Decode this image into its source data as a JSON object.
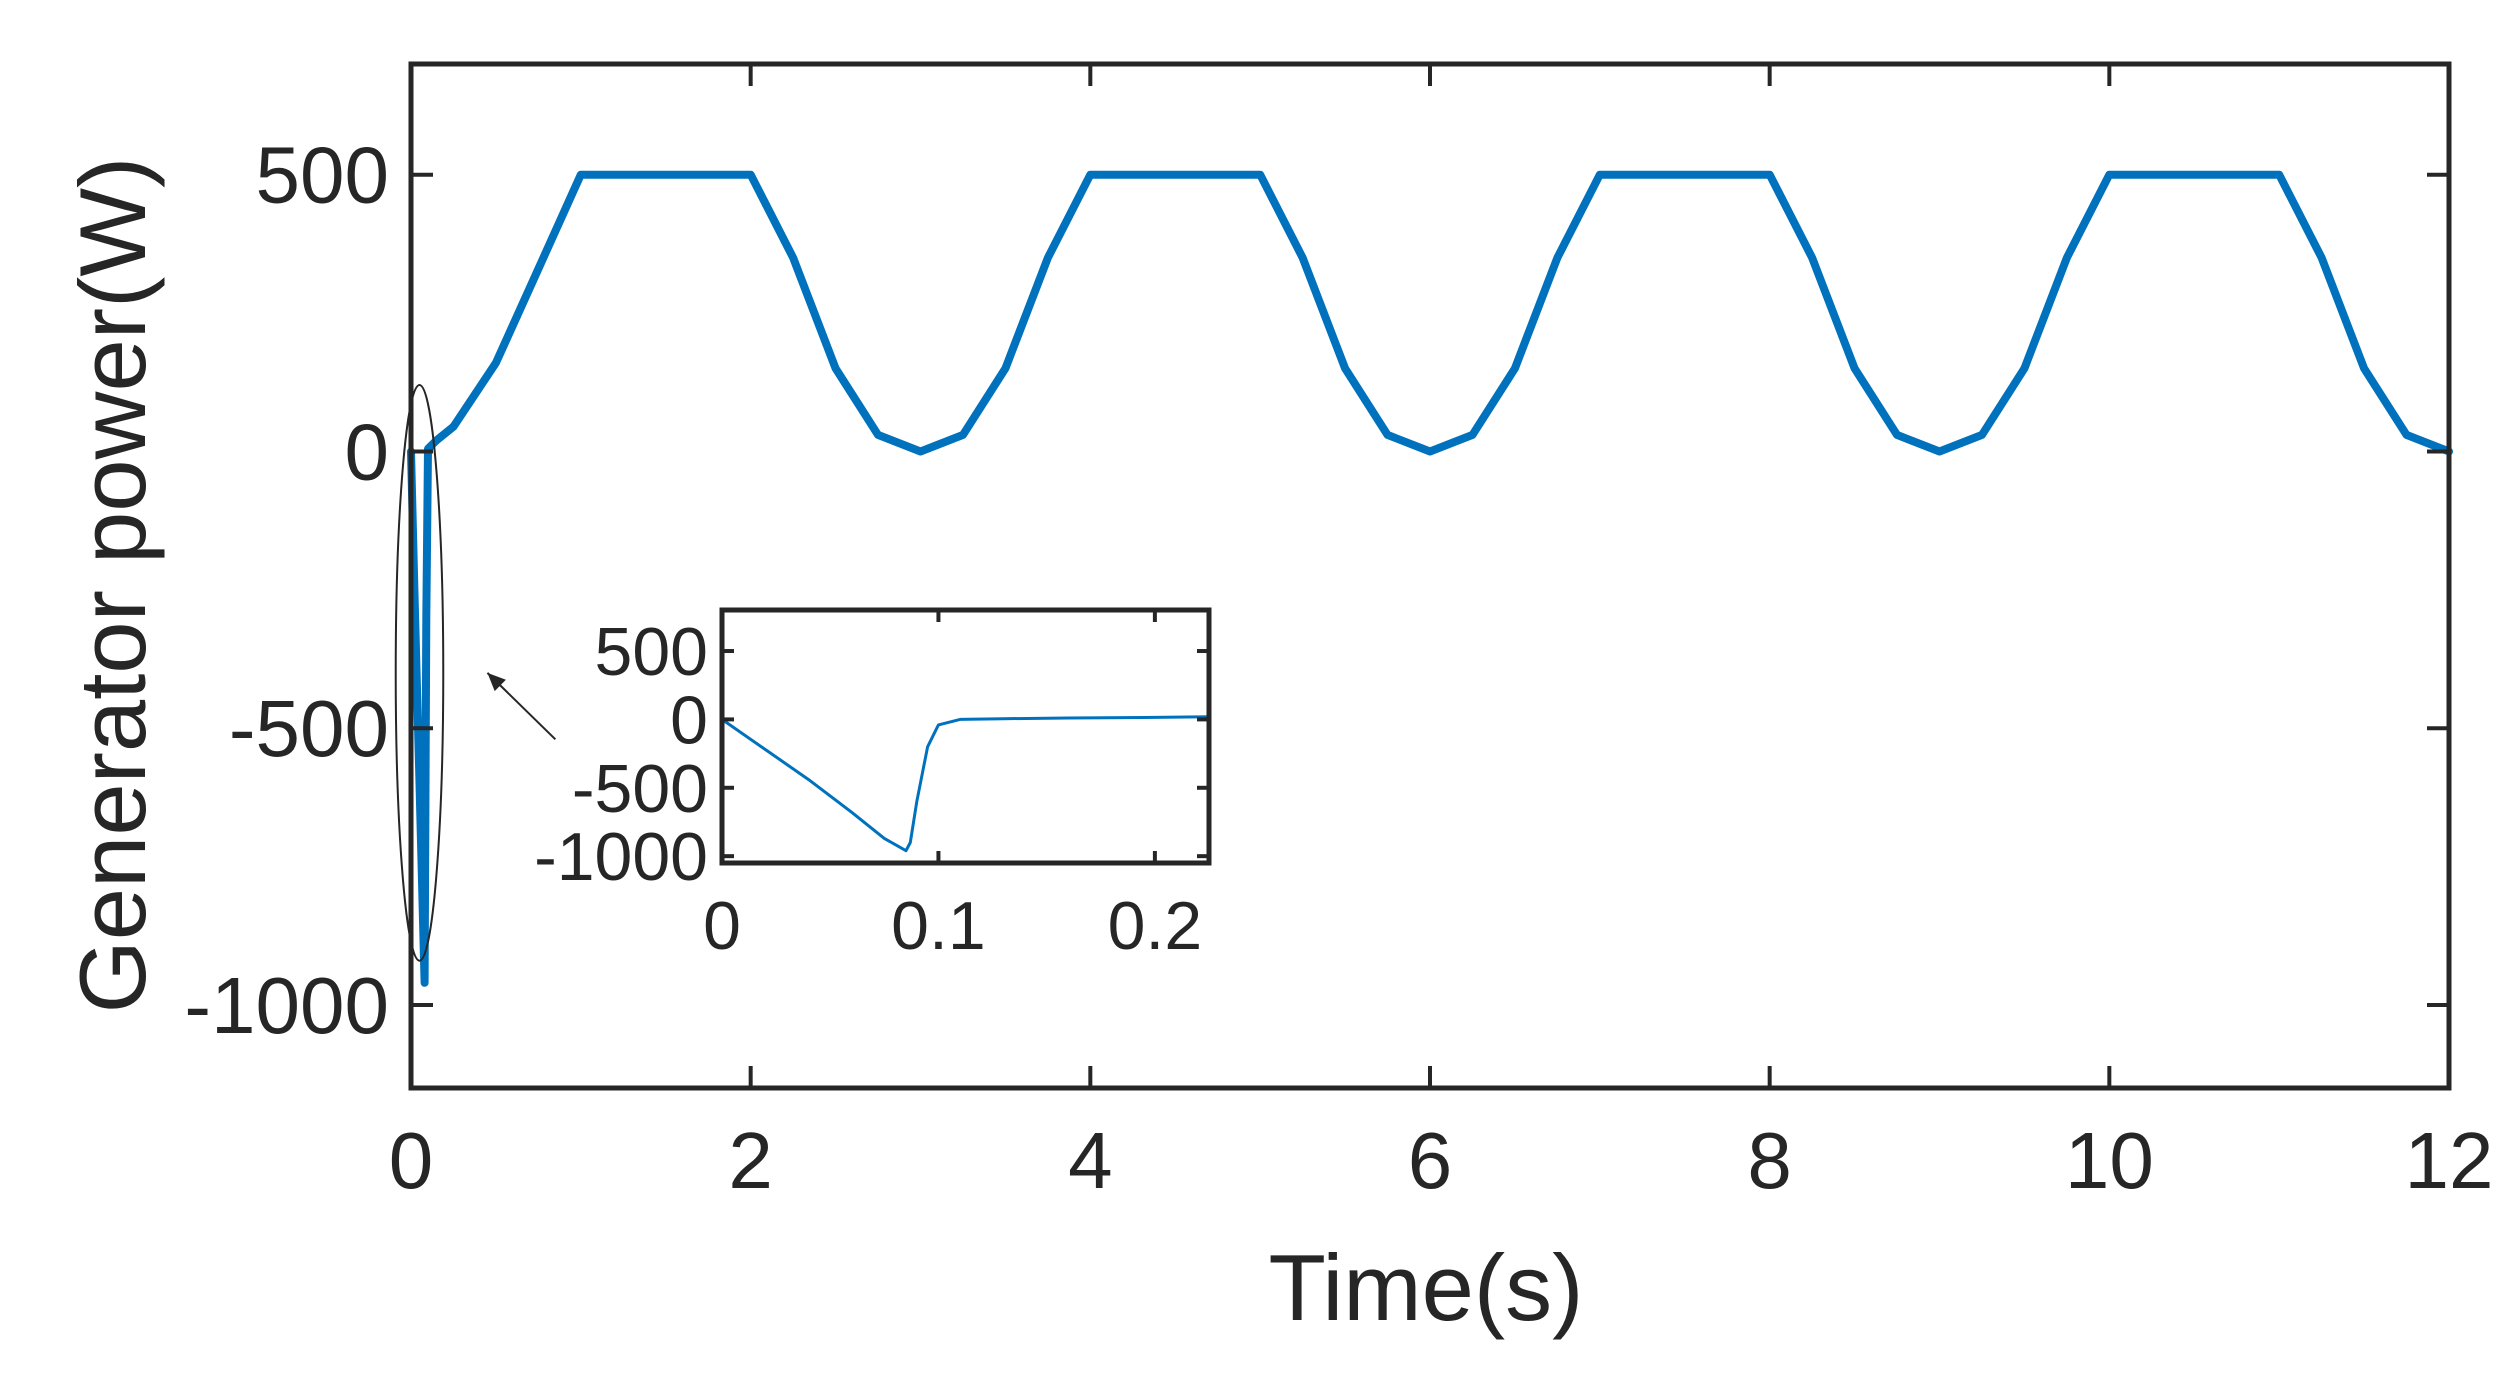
{
  "chart_data": [
    {
      "type": "line",
      "xlabel": "Time(s)",
      "ylabel": "Generator power(W)",
      "xlim": [
        0,
        12
      ],
      "ylim": [
        -1150,
        700
      ],
      "xticks": [
        0,
        2,
        4,
        6,
        8,
        10,
        12
      ],
      "xtick_labels": [
        "0",
        "2",
        "4",
        "6",
        "8",
        "10",
        "12"
      ],
      "yticks": [
        500,
        0,
        -500,
        -1000
      ],
      "ytick_labels": [
        "500",
        "0",
        "-500",
        "-1000"
      ],
      "grid": false,
      "legend": "none",
      "line_color": "#0072BD",
      "series": [
        {
          "x": [
            0,
            0.02,
            0.05,
            0.08,
            0.09,
            0.1,
            0.15,
            0.25,
            0.5,
            0.75,
            1.0,
            1.5,
            2.0,
            2.25,
            2.5,
            2.75,
            3.0,
            3.25,
            3.5,
            3.75,
            4.0,
            4.5,
            5.0,
            5.25,
            5.5,
            5.75,
            6.0,
            6.25,
            6.5,
            6.75,
            7.0,
            7.5,
            8.0,
            8.25,
            8.5,
            8.75,
            9.0,
            9.25,
            9.5,
            9.75,
            10.0,
            10.5,
            11.0,
            11.25,
            11.5,
            11.75,
            12.0
          ],
          "y": [
            0,
            -250,
            -600,
            -960,
            -300,
            5,
            20,
            45,
            160,
            330,
            500,
            500,
            500,
            350,
            150,
            30,
            0,
            30,
            150,
            350,
            500,
            500,
            500,
            350,
            150,
            30,
            0,
            30,
            150,
            350,
            500,
            500,
            500,
            350,
            150,
            30,
            0,
            30,
            150,
            350,
            500,
            500,
            500,
            350,
            150,
            30,
            0
          ]
        }
      ],
      "annotations": [
        {
          "type": "ellipse",
          "x": 0.05,
          "y": -400,
          "rx": 0.14,
          "ry": 520
        },
        {
          "type": "arrow",
          "from": [
            0.85,
            -520
          ],
          "to": [
            0.45,
            -400
          ]
        }
      ]
    },
    {
      "type": "line",
      "xlim": [
        0,
        0.225
      ],
      "ylim": [
        -1050,
        800
      ],
      "xticks": [
        0,
        0.1,
        0.2
      ],
      "xtick_labels": [
        "0",
        "0.1",
        "0.2"
      ],
      "yticks": [
        500,
        0,
        -500,
        -1000
      ],
      "ytick_labels": [
        "500",
        "0",
        "-500",
        "-1000"
      ],
      "grid": false,
      "legend": "none",
      "line_color": "#0072BD",
      "series": [
        {
          "x": [
            0,
            0.02,
            0.04,
            0.06,
            0.075,
            0.085,
            0.087,
            0.09,
            0.095,
            0.1,
            0.11,
            0.13,
            0.16,
            0.2,
            0.225
          ],
          "y": [
            0,
            -220,
            -440,
            -680,
            -870,
            -960,
            -900,
            -600,
            -200,
            -40,
            0,
            5,
            10,
            15,
            20
          ]
        }
      ]
    }
  ]
}
